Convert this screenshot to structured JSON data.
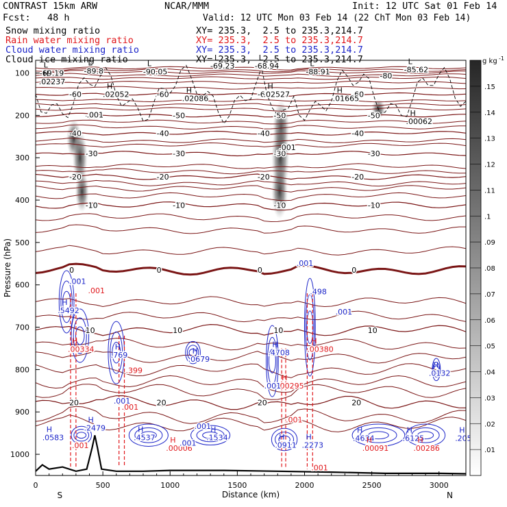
{
  "header": {
    "model": "CONTRAST 15km ARW",
    "center": "NCAR/MMM",
    "init": "Init: 12 UTC Sat 01 Feb 14",
    "fcst": "Fcst:   48 h",
    "valid": "Valid: 12 UTC Mon 03 Feb 14 (22 ChT Mon 03 Feb 14)"
  },
  "legend": [
    {
      "name": "Snow mixing ratio",
      "xy": "XY= 235.3,  2.5 to 235.3,214.7",
      "color": "#000000"
    },
    {
      "name": "Rain water mixing ratio",
      "xy": "XY= 235.3,  2.5 to 235.3,214.7",
      "color": "#e0161a"
    },
    {
      "name": "Cloud water mixing ratio",
      "xy": "XY= 235.3,  2.5 to 235.3,214.7",
      "color": "#1a23c8"
    },
    {
      "name": "Cloud ice mixing ratio",
      "xy": "XY= 235.3,  2.5 to 235.3,214.7",
      "color": "#000000"
    }
  ],
  "chart_data": {
    "type": "cross-section contour",
    "xlabel": "Distance (km)",
    "ylabel": "Pressure (hPa)",
    "xlim": [
      0,
      3200
    ],
    "ylim": [
      1050,
      70
    ],
    "xticks": [
      "0",
      "500",
      "1000",
      "1500",
      "2000",
      "2500",
      "3000"
    ],
    "yticks": [
      "100",
      "200",
      "300",
      "400",
      "500",
      "600",
      "700",
      "800",
      "900",
      "1000"
    ],
    "x_end_labels": {
      "left": "S",
      "right": "N"
    },
    "colorbar": {
      "unit": "g kg",
      "unit_sup": "-1",
      "levels": [
        ".01",
        ".02",
        ".03",
        ".04",
        ".05",
        ".06",
        ".07",
        ".08",
        ".09",
        ".1",
        ".11",
        ".12",
        ".13",
        ".14",
        ".15"
      ]
    },
    "temperature_contours": [
      {
        "label": "-60",
        "p": 150
      },
      {
        "label": "-50",
        "p": 200
      },
      {
        "label": "-40",
        "p": 242
      },
      {
        "label": "-30",
        "p": 290
      },
      {
        "label": "-20",
        "p": 345
      },
      {
        "label": "-10",
        "p": 412
      },
      {
        "label": "0",
        "p": 565
      },
      {
        "label": "10",
        "p": 707
      },
      {
        "label": "20",
        "p": 878
      }
    ],
    "high_low_labels": [
      {
        "type": "L",
        "value": "-69.19",
        "x": 60,
        "p": 100,
        "color": "#000000"
      },
      {
        "type": "L",
        "value": "-89.8",
        "x": 390,
        "p": 95,
        "color": "#000000"
      },
      {
        "type": "L",
        "value": "-90.05",
        "x": 830,
        "p": 97,
        "color": "#000000"
      },
      {
        "type": "L",
        "value": "-69.23",
        "x": 1330,
        "p": 83,
        "color": "#000000"
      },
      {
        "type": "L",
        "value": "-68.94",
        "x": 1660,
        "p": 83,
        "color": "#000000"
      },
      {
        "type": "L",
        "value": "-88.91",
        "x": 2040,
        "p": 97,
        "color": "#000000"
      },
      {
        "type": "L",
        "value": "-85.62",
        "x": 2770,
        "p": 92,
        "color": "#000000"
      },
      {
        "type": "H",
        "value": ".02237",
        "x": 55,
        "p": 120,
        "color": "#000000"
      },
      {
        "type": "H",
        "value": ".02052",
        "x": 530,
        "p": 150,
        "color": "#000000"
      },
      {
        "type": "H",
        "value": ".02086",
        "x": 1120,
        "p": 160,
        "color": "#000000"
      },
      {
        "type": "H",
        "value": ".02527",
        "x": 1725,
        "p": 150,
        "color": "#000000"
      },
      {
        "type": "H",
        "value": ".01665",
        "x": 2240,
        "p": 160,
        "color": "#000000"
      },
      {
        "type": "H",
        "value": ".00062",
        "x": 2785,
        "p": 214,
        "color": "#000000"
      },
      {
        "type": "H",
        "value": ".5492",
        "x": 195,
        "p": 660,
        "color": "#1a23c8"
      },
      {
        "type": "H",
        "value": ".769",
        "x": 590,
        "p": 765,
        "color": "#1a23c8"
      },
      {
        "type": "H",
        "value": ".0679",
        "x": 1165,
        "p": 775,
        "color": "#1a23c8"
      },
      {
        "type": "H",
        "value": ".4708",
        "x": 1760,
        "p": 760,
        "color": "#1a23c8"
      },
      {
        "type": "H",
        "value": ".0132",
        "x": 2955,
        "p": 808,
        "color": "#1a23c8"
      },
      {
        "type": "H",
        "value": ".2479",
        "x": 390,
        "p": 938,
        "color": "#1a23c8"
      },
      {
        "type": "H",
        "value": ".0583",
        "x": 80,
        "p": 960,
        "color": "#1a23c8"
      },
      {
        "type": "H",
        "value": ".4537",
        "x": 760,
        "p": 960,
        "color": "#1a23c8"
      },
      {
        "type": "H",
        "value": ".1534",
        "x": 1300,
        "p": 960,
        "color": "#1a23c8"
      },
      {
        "type": "H",
        "value": ".0911",
        "x": 1810,
        "p": 978,
        "color": "#1a23c8"
      },
      {
        "type": "H",
        "value": ".2273",
        "x": 2010,
        "p": 978,
        "color": "#1a23c8"
      },
      {
        "type": "H",
        "value": ".4634",
        "x": 2390,
        "p": 962,
        "color": "#1a23c8"
      },
      {
        "type": "H",
        "value": ".6125",
        "x": 2760,
        "p": 962,
        "color": "#1a23c8"
      },
      {
        "type": "H",
        "value": ".205",
        "x": 3150,
        "p": 962,
        "color": "#1a23c8"
      },
      {
        "type": "H",
        "value": ".00334",
        "x": 270,
        "p": 752,
        "color": "#e0161a"
      },
      {
        "type": "H",
        "value": ".00380",
        "x": 2050,
        "p": 752,
        "color": "#e0161a"
      },
      {
        "type": "H",
        "value": ".00295",
        "x": 1830,
        "p": 838,
        "color": "#e0161a"
      },
      {
        "type": "H",
        "value": ".00006",
        "x": 1000,
        "p": 985,
        "color": "#e0161a"
      },
      {
        "type": "H",
        "value": ".00091",
        "x": 2460,
        "p": 985,
        "color": "#e0161a"
      },
      {
        "type": "H",
        "value": ".00286",
        "x": 2840,
        "p": 985,
        "color": "#e0161a"
      }
    ],
    "annotations": [
      {
        "text": ".001",
        "x": 380,
        "p": 205,
        "color": "#000000"
      },
      {
        "text": ".001",
        "x": 1810,
        "p": 282,
        "color": "#000000"
      },
      {
        "text": "-80",
        "x": 2560,
        "p": 113,
        "color": "#000000"
      },
      {
        "text": ".001",
        "x": 250,
        "p": 598,
        "color": "#1a23c8"
      },
      {
        "text": ".001",
        "x": 1940,
        "p": 555,
        "color": "#1a23c8"
      },
      {
        "text": ".498",
        "x": 2040,
        "p": 622,
        "color": "#1a23c8"
      },
      {
        "text": ".001",
        "x": 2230,
        "p": 670,
        "color": "#1a23c8"
      },
      {
        "text": ".001",
        "x": 1700,
        "p": 845,
        "color": "#1a23c8"
      },
      {
        "text": ".001",
        "x": 580,
        "p": 880,
        "color": "#1a23c8"
      },
      {
        "text": ".001",
        "x": 1180,
        "p": 940,
        "color": "#1a23c8"
      },
      {
        "text": ".001",
        "x": 1070,
        "p": 980,
        "color": "#1a23c8"
      },
      {
        "text": ".001",
        "x": 390,
        "p": 620,
        "color": "#e0161a"
      },
      {
        "text": ".399",
        "x": 670,
        "p": 808,
        "color": "#e0161a"
      },
      {
        "text": ".001",
        "x": 640,
        "p": 895,
        "color": "#e0161a"
      },
      {
        "text": ".001",
        "x": 270,
        "p": 985,
        "color": "#e0161a"
      },
      {
        "text": ".001",
        "x": 1860,
        "p": 925,
        "color": "#e0161a"
      },
      {
        "text": ".001",
        "x": 2050,
        "p": 1038,
        "color": "#e0161a"
      }
    ],
    "terrain": [
      [
        0,
        1040
      ],
      [
        50,
        1025
      ],
      [
        100,
        1035
      ],
      [
        200,
        1030
      ],
      [
        300,
        1040
      ],
      [
        380,
        1035
      ],
      [
        420,
        985
      ],
      [
        440,
        955
      ],
      [
        460,
        985
      ],
      [
        490,
        1035
      ],
      [
        600,
        1040
      ],
      [
        800,
        1040
      ],
      [
        1000,
        1038
      ],
      [
        1400,
        1038
      ],
      [
        1800,
        1040
      ],
      [
        2200,
        1042
      ],
      [
        2600,
        1045
      ],
      [
        3000,
        1045
      ],
      [
        3200,
        1046
      ]
    ]
  }
}
